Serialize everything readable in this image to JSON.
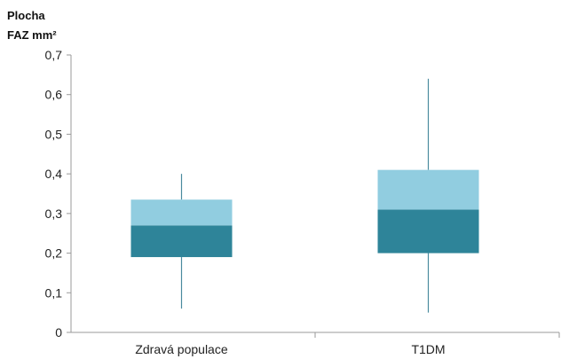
{
  "chart_data": {
    "type": "box",
    "ylabel_lines": [
      "Plocha",
      "FAZ mm²"
    ],
    "categories": [
      "Zdravá populace",
      "T1DM"
    ],
    "y_ticks": [
      "0",
      "0,1",
      "0,2",
      "0,3",
      "0,4",
      "0,5",
      "0,6",
      "0,7"
    ],
    "ylim": [
      0,
      0.7
    ],
    "boxes": [
      {
        "category": "Zdravá populace",
        "min": 0.06,
        "q1": 0.19,
        "median": 0.27,
        "q3": 0.335,
        "max": 0.4
      },
      {
        "category": "T1DM",
        "min": 0.05,
        "q1": 0.2,
        "median": 0.31,
        "q3": 0.41,
        "max": 0.64
      }
    ],
    "colors": {
      "lower_box": "#2e8499",
      "upper_box": "#91cde0",
      "whisker": "#4a8a9e",
      "axis": "#9a9a9a"
    },
    "grid": false
  }
}
